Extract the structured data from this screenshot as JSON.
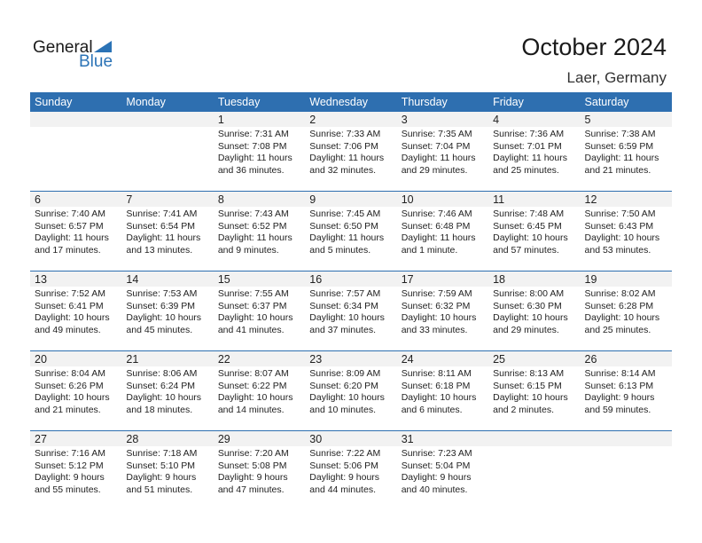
{
  "logo": {
    "line1": "General",
    "line2": "Blue"
  },
  "title": "October 2024",
  "location": "Laer, Germany",
  "colors": {
    "header": "#2e6fb0",
    "band": "#f2f2f2",
    "logo_blue": "#2b73b6"
  },
  "days": [
    "Sunday",
    "Monday",
    "Tuesday",
    "Wednesday",
    "Thursday",
    "Friday",
    "Saturday"
  ],
  "weeks": [
    [
      null,
      null,
      {
        "day": "1",
        "sunrise": "Sunrise: 7:31 AM",
        "sunset": "Sunset: 7:08 PM",
        "daylight": "Daylight: 11 hours",
        "minutes": "and 36 minutes."
      },
      {
        "day": "2",
        "sunrise": "Sunrise: 7:33 AM",
        "sunset": "Sunset: 7:06 PM",
        "daylight": "Daylight: 11 hours",
        "minutes": "and 32 minutes."
      },
      {
        "day": "3",
        "sunrise": "Sunrise: 7:35 AM",
        "sunset": "Sunset: 7:04 PM",
        "daylight": "Daylight: 11 hours",
        "minutes": "and 29 minutes."
      },
      {
        "day": "4",
        "sunrise": "Sunrise: 7:36 AM",
        "sunset": "Sunset: 7:01 PM",
        "daylight": "Daylight: 11 hours",
        "minutes": "and 25 minutes."
      },
      {
        "day": "5",
        "sunrise": "Sunrise: 7:38 AM",
        "sunset": "Sunset: 6:59 PM",
        "daylight": "Daylight: 11 hours",
        "minutes": "and 21 minutes."
      }
    ],
    [
      {
        "day": "6",
        "sunrise": "Sunrise: 7:40 AM",
        "sunset": "Sunset: 6:57 PM",
        "daylight": "Daylight: 11 hours",
        "minutes": "and 17 minutes."
      },
      {
        "day": "7",
        "sunrise": "Sunrise: 7:41 AM",
        "sunset": "Sunset: 6:54 PM",
        "daylight": "Daylight: 11 hours",
        "minutes": "and 13 minutes."
      },
      {
        "day": "8",
        "sunrise": "Sunrise: 7:43 AM",
        "sunset": "Sunset: 6:52 PM",
        "daylight": "Daylight: 11 hours",
        "minutes": "and 9 minutes."
      },
      {
        "day": "9",
        "sunrise": "Sunrise: 7:45 AM",
        "sunset": "Sunset: 6:50 PM",
        "daylight": "Daylight: 11 hours",
        "minutes": "and 5 minutes."
      },
      {
        "day": "10",
        "sunrise": "Sunrise: 7:46 AM",
        "sunset": "Sunset: 6:48 PM",
        "daylight": "Daylight: 11 hours",
        "minutes": "and 1 minute."
      },
      {
        "day": "11",
        "sunrise": "Sunrise: 7:48 AM",
        "sunset": "Sunset: 6:45 PM",
        "daylight": "Daylight: 10 hours",
        "minutes": "and 57 minutes."
      },
      {
        "day": "12",
        "sunrise": "Sunrise: 7:50 AM",
        "sunset": "Sunset: 6:43 PM",
        "daylight": "Daylight: 10 hours",
        "minutes": "and 53 minutes."
      }
    ],
    [
      {
        "day": "13",
        "sunrise": "Sunrise: 7:52 AM",
        "sunset": "Sunset: 6:41 PM",
        "daylight": "Daylight: 10 hours",
        "minutes": "and 49 minutes."
      },
      {
        "day": "14",
        "sunrise": "Sunrise: 7:53 AM",
        "sunset": "Sunset: 6:39 PM",
        "daylight": "Daylight: 10 hours",
        "minutes": "and 45 minutes."
      },
      {
        "day": "15",
        "sunrise": "Sunrise: 7:55 AM",
        "sunset": "Sunset: 6:37 PM",
        "daylight": "Daylight: 10 hours",
        "minutes": "and 41 minutes."
      },
      {
        "day": "16",
        "sunrise": "Sunrise: 7:57 AM",
        "sunset": "Sunset: 6:34 PM",
        "daylight": "Daylight: 10 hours",
        "minutes": "and 37 minutes."
      },
      {
        "day": "17",
        "sunrise": "Sunrise: 7:59 AM",
        "sunset": "Sunset: 6:32 PM",
        "daylight": "Daylight: 10 hours",
        "minutes": "and 33 minutes."
      },
      {
        "day": "18",
        "sunrise": "Sunrise: 8:00 AM",
        "sunset": "Sunset: 6:30 PM",
        "daylight": "Daylight: 10 hours",
        "minutes": "and 29 minutes."
      },
      {
        "day": "19",
        "sunrise": "Sunrise: 8:02 AM",
        "sunset": "Sunset: 6:28 PM",
        "daylight": "Daylight: 10 hours",
        "minutes": "and 25 minutes."
      }
    ],
    [
      {
        "day": "20",
        "sunrise": "Sunrise: 8:04 AM",
        "sunset": "Sunset: 6:26 PM",
        "daylight": "Daylight: 10 hours",
        "minutes": "and 21 minutes."
      },
      {
        "day": "21",
        "sunrise": "Sunrise: 8:06 AM",
        "sunset": "Sunset: 6:24 PM",
        "daylight": "Daylight: 10 hours",
        "minutes": "and 18 minutes."
      },
      {
        "day": "22",
        "sunrise": "Sunrise: 8:07 AM",
        "sunset": "Sunset: 6:22 PM",
        "daylight": "Daylight: 10 hours",
        "minutes": "and 14 minutes."
      },
      {
        "day": "23",
        "sunrise": "Sunrise: 8:09 AM",
        "sunset": "Sunset: 6:20 PM",
        "daylight": "Daylight: 10 hours",
        "minutes": "and 10 minutes."
      },
      {
        "day": "24",
        "sunrise": "Sunrise: 8:11 AM",
        "sunset": "Sunset: 6:18 PM",
        "daylight": "Daylight: 10 hours",
        "minutes": "and 6 minutes."
      },
      {
        "day": "25",
        "sunrise": "Sunrise: 8:13 AM",
        "sunset": "Sunset: 6:15 PM",
        "daylight": "Daylight: 10 hours",
        "minutes": "and 2 minutes."
      },
      {
        "day": "26",
        "sunrise": "Sunrise: 8:14 AM",
        "sunset": "Sunset: 6:13 PM",
        "daylight": "Daylight: 9 hours",
        "minutes": "and 59 minutes."
      }
    ],
    [
      {
        "day": "27",
        "sunrise": "Sunrise: 7:16 AM",
        "sunset": "Sunset: 5:12 PM",
        "daylight": "Daylight: 9 hours",
        "minutes": "and 55 minutes."
      },
      {
        "day": "28",
        "sunrise": "Sunrise: 7:18 AM",
        "sunset": "Sunset: 5:10 PM",
        "daylight": "Daylight: 9 hours",
        "minutes": "and 51 minutes."
      },
      {
        "day": "29",
        "sunrise": "Sunrise: 7:20 AM",
        "sunset": "Sunset: 5:08 PM",
        "daylight": "Daylight: 9 hours",
        "minutes": "and 47 minutes."
      },
      {
        "day": "30",
        "sunrise": "Sunrise: 7:22 AM",
        "sunset": "Sunset: 5:06 PM",
        "daylight": "Daylight: 9 hours",
        "minutes": "and 44 minutes."
      },
      {
        "day": "31",
        "sunrise": "Sunrise: 7:23 AM",
        "sunset": "Sunset: 5:04 PM",
        "daylight": "Daylight: 9 hours",
        "minutes": "and 40 minutes."
      },
      null,
      null
    ]
  ]
}
